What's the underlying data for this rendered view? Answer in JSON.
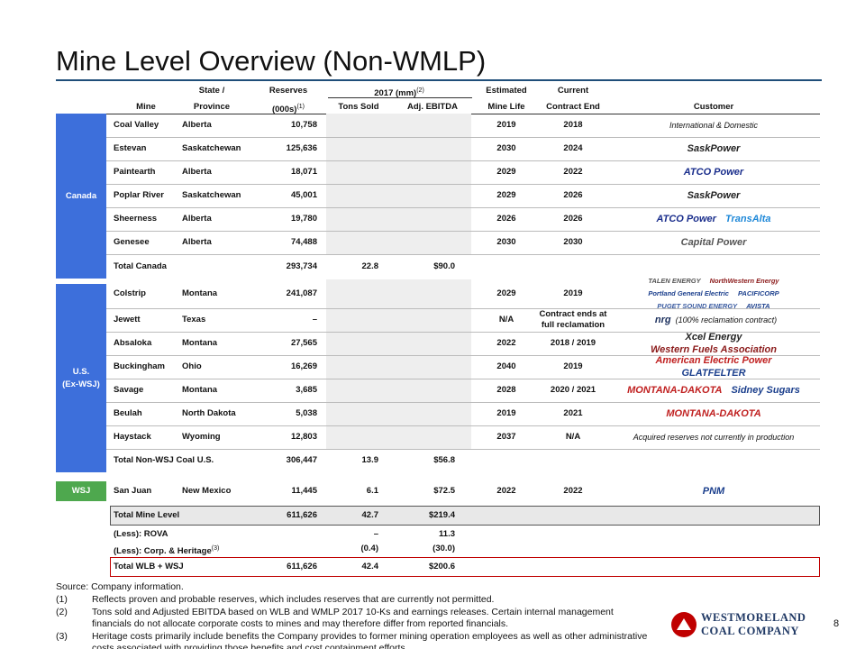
{
  "title": "Mine Level Overview (Non-WMLP)",
  "header": {
    "state_top": "State /",
    "reserves_top": "Reserves",
    "group": "2017 (mm)",
    "group_note": "(2)",
    "life_top": "Estimated",
    "contract_top": "Current",
    "mine": "Mine",
    "province": "Province",
    "reserves": "(000s)",
    "reserves_note": "(1)",
    "tons": "Tons Sold",
    "ebitda": "Adj. EBITDA",
    "life": "Mine Life",
    "contract": "Contract End",
    "customer": "Customer"
  },
  "sections": [
    {
      "label": [
        "Canada"
      ],
      "color": "#3d6fdb",
      "rows": [
        {
          "mine": "Coal Valley",
          "province": "Alberta",
          "reserves": "10,758",
          "life": "2019",
          "contract": "2018",
          "customer": {
            "text": "International & Domestic"
          }
        },
        {
          "mine": "Estevan",
          "province": "Saskatchewan",
          "reserves": "125,636",
          "life": "2030",
          "contract": "2024",
          "customer": {
            "logos": [
              {
                "name": "SaskPower",
                "color": "#222222"
              }
            ]
          }
        },
        {
          "mine": "Paintearth",
          "province": "Alberta",
          "reserves": "18,071",
          "life": "2029",
          "contract": "2022",
          "customer": {
            "logos": [
              {
                "name": "ATCO Power",
                "color": "#1a2e8c"
              }
            ]
          }
        },
        {
          "mine": "Poplar River",
          "province": "Saskatchewan",
          "reserves": "45,001",
          "life": "2029",
          "contract": "2026",
          "customer": {
            "logos": [
              {
                "name": "SaskPower",
                "color": "#222222"
              }
            ]
          }
        },
        {
          "mine": "Sheerness",
          "province": "Alberta",
          "reserves": "19,780",
          "life": "2026",
          "contract": "2026",
          "customer": {
            "logos": [
              {
                "name": "ATCO Power",
                "color": "#1a2e8c"
              },
              {
                "name": "TransAlta",
                "color": "#1e88d8"
              }
            ]
          }
        },
        {
          "mine": "Genesee",
          "province": "Alberta",
          "reserves": "74,488",
          "life": "2030",
          "contract": "2030",
          "customer": {
            "logos": [
              {
                "name": "Capital Power",
                "color": "#555555"
              }
            ]
          }
        }
      ],
      "total": {
        "label": "Total Canada",
        "reserves": "293,734",
        "tons": "22.8",
        "ebitda": "$90.0"
      }
    },
    {
      "label": [
        "U.S.",
        "(Ex-WSJ)"
      ],
      "color": "#3d6fdb",
      "rows": [
        {
          "mine": "Colstrip",
          "province": "Montana",
          "reserves": "241,087",
          "life": "2029",
          "contract": "2019",
          "customer": {
            "logos": [
              {
                "name": "TALEN ENERGY",
                "color": "#555555"
              },
              {
                "name": "NorthWestern Energy",
                "color": "#8b1a1a"
              },
              {
                "name": "Portland General Electric",
                "color": "#1a3e8c"
              },
              {
                "name": "PACIFICORP",
                "color": "#1a3e8c"
              },
              {
                "name": "PUGET SOUND ENERGY",
                "color": "#3a5ba0"
              },
              {
                "name": "AVISTA",
                "color": "#1a3e8c"
              }
            ]
          }
        },
        {
          "mine": "Jewett",
          "province": "Texas",
          "reserves": "–",
          "life": "N/A",
          "contract": "Contract ends at\nfull reclamation",
          "customer": {
            "logos": [
              {
                "name": "nrg",
                "color": "#1a2e5c"
              }
            ],
            "text": "(100% reclamation contract)"
          }
        },
        {
          "mine": "Absaloka",
          "province": "Montana",
          "reserves": "27,565",
          "life": "2022",
          "contract": "2018 / 2019",
          "customer": {
            "logos": [
              {
                "name": "Xcel Energy",
                "color": "#222222"
              },
              {
                "name": "Western Fuels Association",
                "color": "#8b1a1a"
              }
            ]
          }
        },
        {
          "mine": "Buckingham",
          "province": "Ohio",
          "reserves": "16,269",
          "life": "2040",
          "contract": "2019",
          "customer": {
            "logos": [
              {
                "name": "American Electric Power",
                "color": "#c02020"
              },
              {
                "name": "GLATFELTER",
                "color": "#1a3e8c"
              }
            ]
          }
        },
        {
          "mine": "Savage",
          "province": "Montana",
          "reserves": "3,685",
          "life": "2028",
          "contract": "2020 / 2021",
          "customer": {
            "logos": [
              {
                "name": "MONTANA-DAKOTA",
                "color": "#c02020"
              },
              {
                "name": "Sidney Sugars",
                "color": "#1a3e8c"
              }
            ]
          }
        },
        {
          "mine": "Beulah",
          "province": "North Dakota",
          "reserves": "5,038",
          "life": "2019",
          "contract": "2021",
          "customer": {
            "logos": [
              {
                "name": "MONTANA-DAKOTA",
                "color": "#c02020"
              }
            ]
          }
        },
        {
          "mine": "Haystack",
          "province": "Wyoming",
          "reserves": "12,803",
          "life": "2037",
          "contract": "N/A",
          "customer": {
            "text": "Acquired reserves not currently in production"
          }
        }
      ],
      "total": {
        "label": "Total Non-WSJ Coal U.S.",
        "reserves": "306,447",
        "tons": "13.9",
        "ebitda": "$56.8"
      }
    },
    {
      "label": [
        "WSJ"
      ],
      "color": "#4ea84e",
      "rows": [
        {
          "mine": "San Juan",
          "province": "New Mexico",
          "reserves": "11,445",
          "tons": "6.1",
          "ebitda": "$72.5",
          "life": "2022",
          "contract": "2022",
          "customer": {
            "logos": [
              {
                "name": "PNM",
                "color": "#1a3e8c"
              }
            ]
          }
        }
      ]
    }
  ],
  "total_mine": {
    "label": "Total Mine Level",
    "reserves": "611,626",
    "tons": "42.7",
    "ebitda": "$219.4"
  },
  "adjustments": [
    {
      "label": "(Less): ROVA",
      "tons": "–",
      "ebitda": "11.3"
    },
    {
      "label": "(Less): Corp. & Heritage",
      "note": "(3)",
      "tons": "(0.4)",
      "ebitda": "(30.0)"
    }
  ],
  "total_final": {
    "label": "Total WLB + WSJ",
    "reserves": "611,626",
    "tons": "42.4",
    "ebitda": "$200.6"
  },
  "footnotes": {
    "source": "Source: Company information.",
    "notes": [
      {
        "mark": "(1)",
        "text": "Reflects proven and probable reserves, which includes reserves that are currently not permitted."
      },
      {
        "mark": "(2)",
        "text": "Tons sold and Adjusted EBITDA based on WLB and WMLP 2017 10-Ks and earnings releases. Certain internal management financials do not allocate corporate costs to mines and may therefore differ from reported financials."
      },
      {
        "mark": "(3)",
        "text": "Heritage costs primarily include benefits the Company provides to former mining operation employees as well as other administrative costs associated with providing those benefits and cost containment efforts."
      }
    ]
  },
  "logo": {
    "line1": "WESTMORELAND",
    "line2": "COAL COMPANY"
  },
  "page_number": "8"
}
